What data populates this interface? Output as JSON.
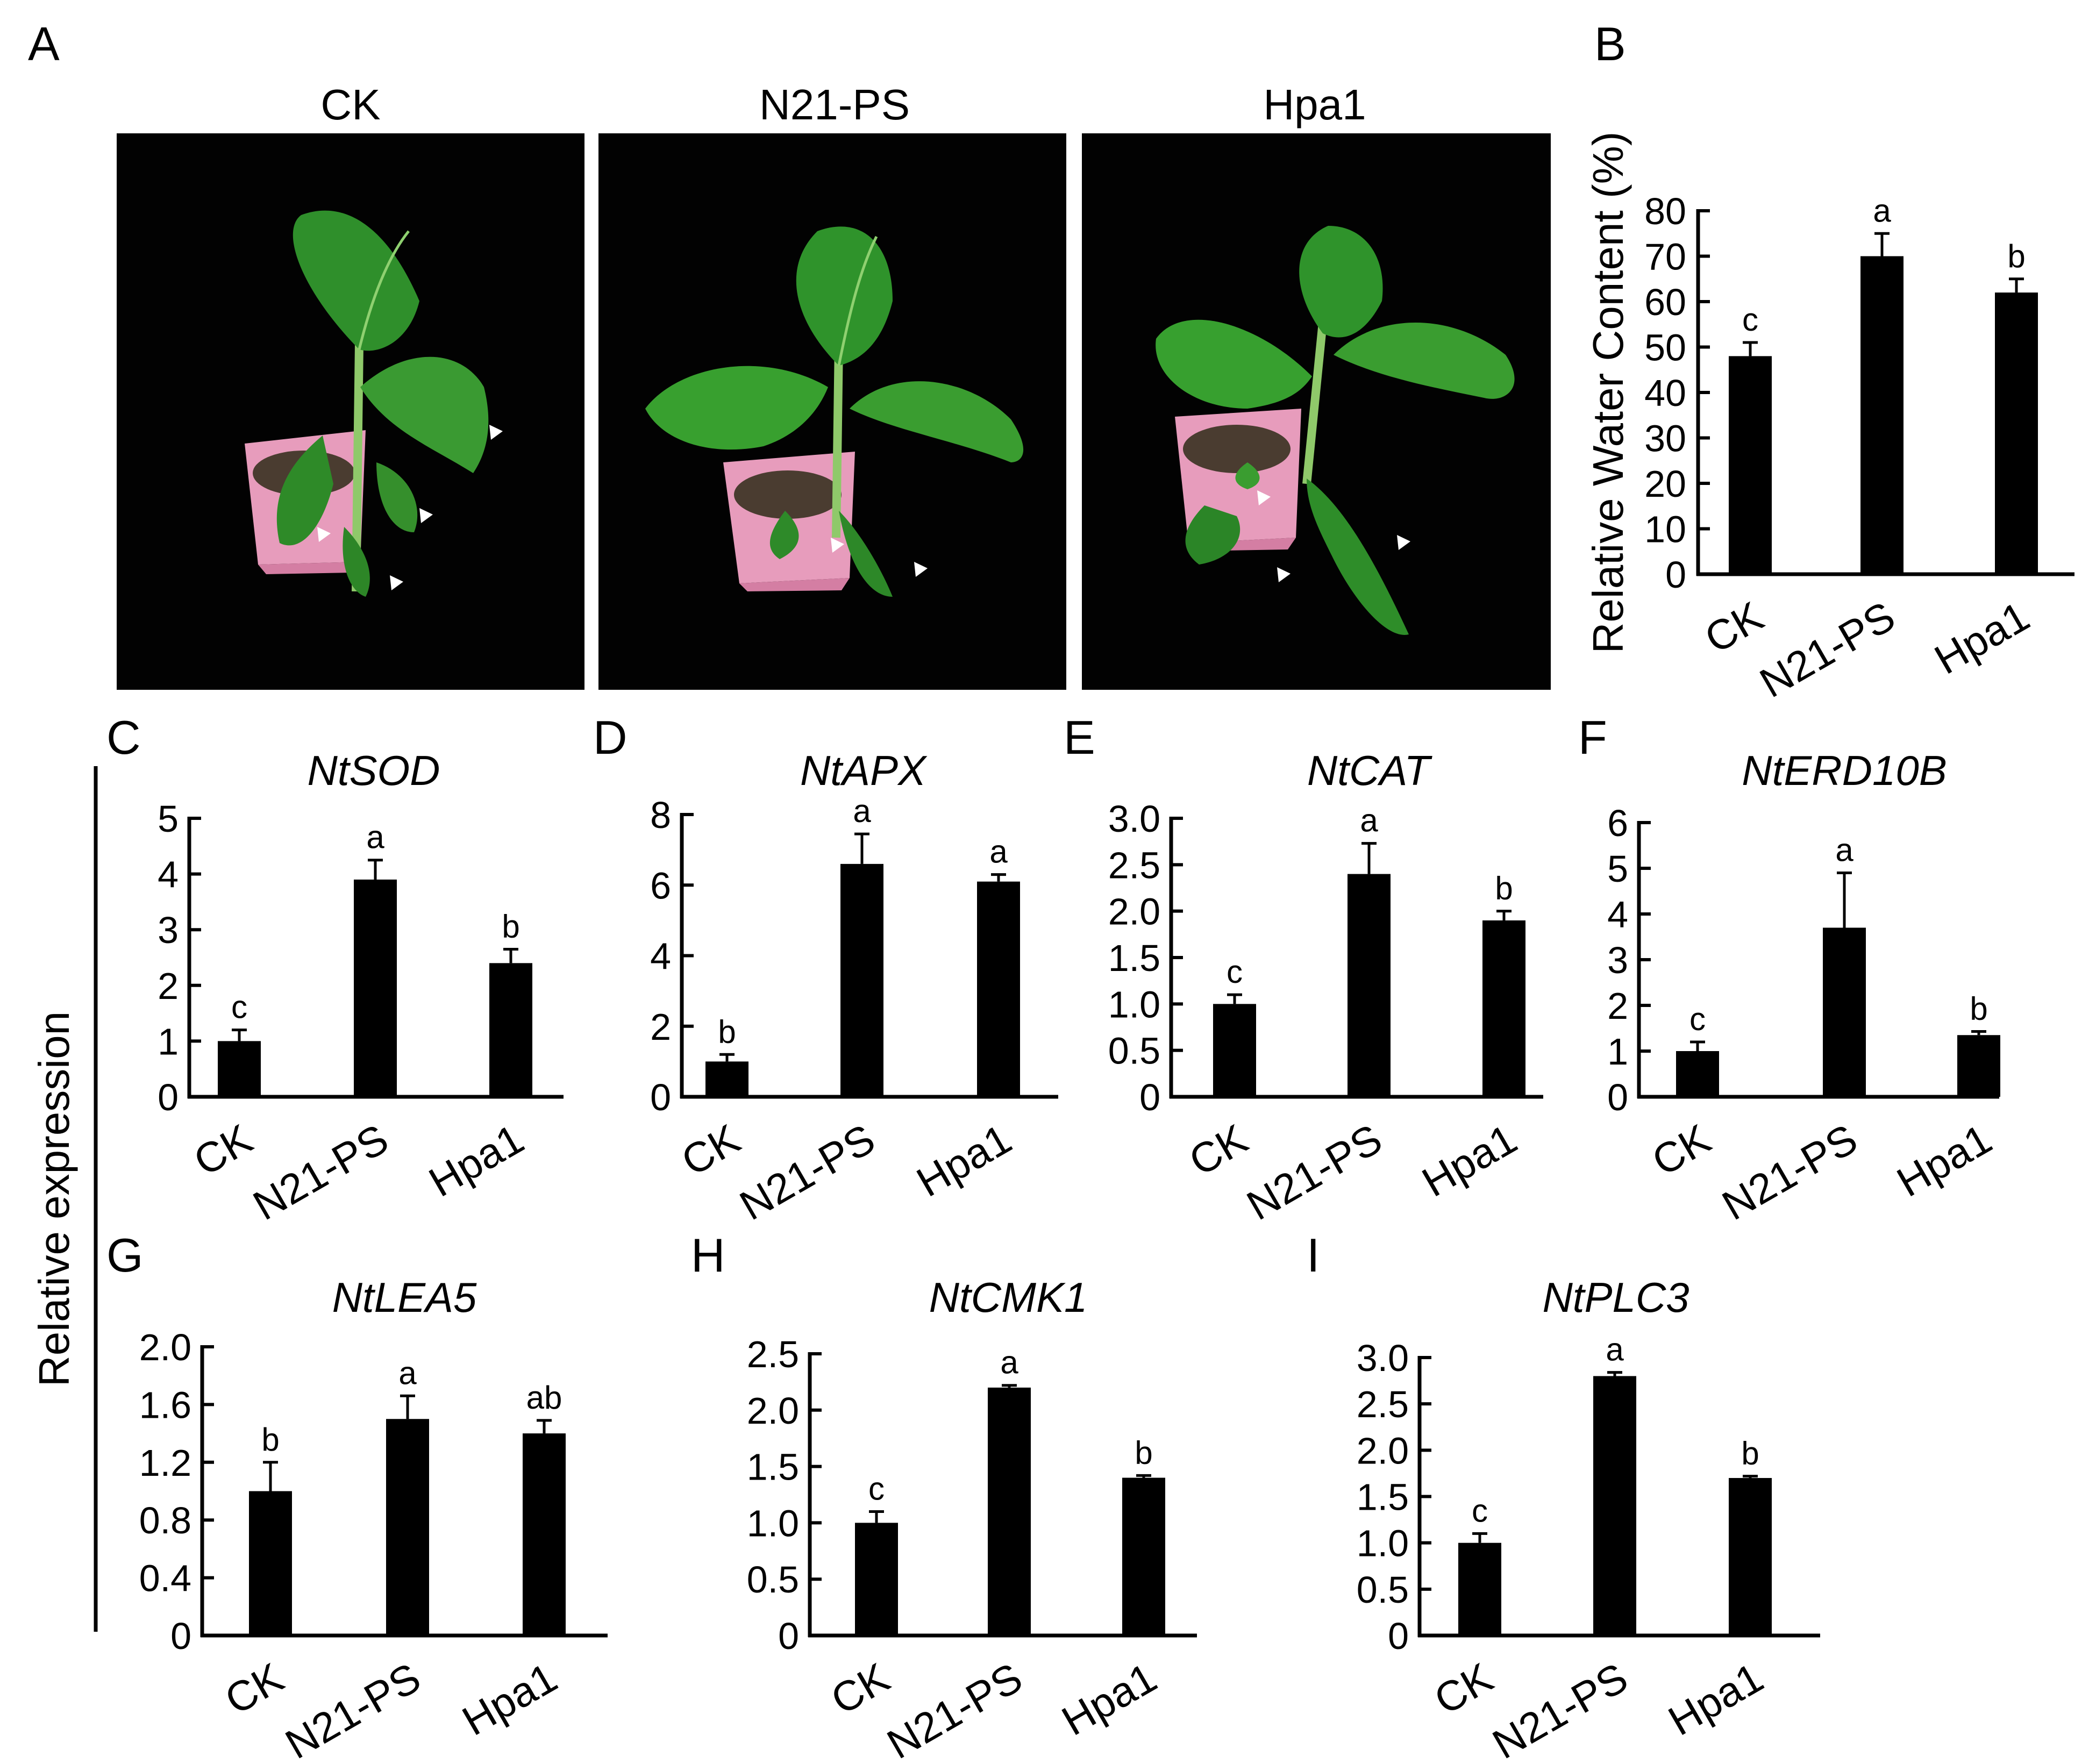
{
  "figure": {
    "panel_letters": [
      "A",
      "B",
      "C",
      "D",
      "E",
      "F",
      "G",
      "H",
      "I"
    ],
    "shared_ylabel": "Relative expression"
  },
  "photos": [
    {
      "label": "CK"
    },
    {
      "label": "N21-PS"
    },
    {
      "label": "Hpa1"
    }
  ],
  "chart_data": [
    {
      "panel": "B",
      "type": "bar",
      "title": "",
      "ylabel": "Relative Water Content (%)",
      "categories": [
        "CK",
        "N21-PS",
        "Hpa1"
      ],
      "values": [
        48,
        70,
        62
      ],
      "errors": [
        3,
        5,
        3
      ],
      "letters": [
        "c",
        "a",
        "b"
      ],
      "ylim": [
        0,
        80
      ],
      "yticks": [
        0,
        10,
        20,
        30,
        40,
        50,
        60,
        70,
        80
      ],
      "ytick_labels": [
        "0",
        "10",
        "20",
        "30",
        "40",
        "50",
        "60",
        "70",
        "80"
      ]
    },
    {
      "panel": "C",
      "type": "bar",
      "title": "NtSOD",
      "ylabel": "",
      "categories": [
        "CK",
        "N21-PS",
        "Hpa1"
      ],
      "values": [
        1.0,
        3.9,
        2.4
      ],
      "errors": [
        0.2,
        0.35,
        0.25
      ],
      "letters": [
        "c",
        "a",
        "b"
      ],
      "ylim": [
        0,
        5
      ],
      "yticks": [
        0,
        1,
        2,
        3,
        4,
        5
      ],
      "ytick_labels": [
        "0",
        "1",
        "2",
        "3",
        "4",
        "5"
      ]
    },
    {
      "panel": "D",
      "type": "bar",
      "title": "NtAPX",
      "ylabel": "",
      "categories": [
        "CK",
        "N21-PS",
        "Hpa1"
      ],
      "values": [
        1.0,
        6.6,
        6.1
      ],
      "errors": [
        0.2,
        0.85,
        0.2
      ],
      "letters": [
        "b",
        "a",
        "a"
      ],
      "ylim": [
        0,
        8
      ],
      "yticks": [
        0,
        2,
        4,
        6,
        8
      ],
      "ytick_labels": [
        "0",
        "2",
        "4",
        "6",
        "8"
      ]
    },
    {
      "panel": "E",
      "type": "bar",
      "title": "NtCAT",
      "ylabel": "",
      "categories": [
        "CK",
        "N21-PS",
        "Hpa1"
      ],
      "values": [
        1.0,
        2.4,
        1.9
      ],
      "errors": [
        0.1,
        0.33,
        0.1
      ],
      "letters": [
        "c",
        "a",
        "b"
      ],
      "ylim": [
        0,
        3.0
      ],
      "yticks": [
        0,
        0.5,
        1.0,
        1.5,
        2.0,
        2.5,
        3.0
      ],
      "ytick_labels": [
        "0",
        "0.5",
        "1.0",
        "1.5",
        "2.0",
        "2.5",
        "3.0"
      ]
    },
    {
      "panel": "F",
      "type": "bar",
      "title": "NtERD10B",
      "ylabel": "",
      "categories": [
        "CK",
        "N21-PS",
        "Hpa1"
      ],
      "values": [
        1.0,
        3.7,
        1.35
      ],
      "errors": [
        0.2,
        1.2,
        0.08
      ],
      "letters": [
        "c",
        "a",
        "b"
      ],
      "ylim": [
        0,
        6
      ],
      "yticks": [
        0,
        1,
        2,
        3,
        4,
        5,
        6
      ],
      "ytick_labels": [
        "0",
        "1",
        "2",
        "3",
        "4",
        "5",
        "6"
      ]
    },
    {
      "panel": "G",
      "type": "bar",
      "title": "NtLEA5",
      "ylabel": "",
      "categories": [
        "CK",
        "N21-PS",
        "Hpa1"
      ],
      "values": [
        1.0,
        1.5,
        1.4
      ],
      "errors": [
        0.2,
        0.16,
        0.09
      ],
      "letters": [
        "b",
        "a",
        "ab"
      ],
      "ylim": [
        0,
        2.0
      ],
      "yticks": [
        0,
        0.4,
        0.8,
        1.2,
        1.6,
        2.0
      ],
      "ytick_labels": [
        "0",
        "0.4",
        "0.8",
        "1.2",
        "1.6",
        "2.0"
      ]
    },
    {
      "panel": "H",
      "type": "bar",
      "title": "NtCMK1",
      "ylabel": "",
      "categories": [
        "CK",
        "N21-PS",
        "Hpa1"
      ],
      "values": [
        1.0,
        2.2,
        1.4
      ],
      "errors": [
        0.1,
        0.02,
        0.02
      ],
      "letters": [
        "c",
        "a",
        "b"
      ],
      "ylim": [
        0,
        2.5
      ],
      "yticks": [
        0,
        0.5,
        1.0,
        1.5,
        2.0,
        2.5
      ],
      "ytick_labels": [
        "0",
        "0.5",
        "1.0",
        "1.5",
        "2.0",
        "2.5"
      ]
    },
    {
      "panel": "I",
      "type": "bar",
      "title": "NtPLC3",
      "ylabel": "",
      "categories": [
        "CK",
        "N21-PS",
        "Hpa1"
      ],
      "values": [
        1.0,
        2.8,
        1.7
      ],
      "errors": [
        0.1,
        0.04,
        0.02
      ],
      "letters": [
        "c",
        "a",
        "b"
      ],
      "ylim": [
        0,
        3.0
      ],
      "yticks": [
        0,
        0.5,
        1.0,
        1.5,
        2.0,
        2.5,
        3.0
      ],
      "ytick_labels": [
        "0",
        "0.5",
        "1.0",
        "1.5",
        "2.0",
        "2.5",
        "3.0"
      ]
    }
  ]
}
